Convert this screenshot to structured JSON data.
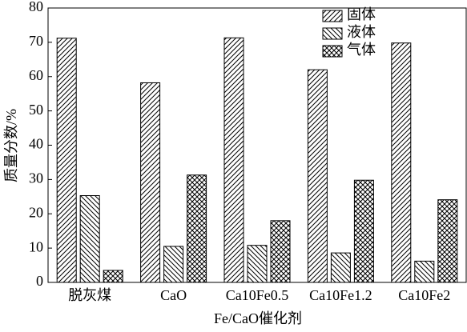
{
  "chart_data": {
    "type": "bar",
    "x_label": "Fe/CaO催化剂",
    "y_label": "质量分数/%",
    "categories": [
      "脱灰煤",
      "CaO",
      "Ca10Fe0.5",
      "Ca10Fe1.2",
      "Ca10Fe2"
    ],
    "series": [
      {
        "name": "固体",
        "color": "#000000",
        "hatch": "/",
        "values": [
          71.2,
          58.2,
          71.3,
          62.0,
          69.8
        ]
      },
      {
        "name": "液体",
        "color": "#000000",
        "hatch": "\\",
        "values": [
          25.3,
          10.5,
          10.8,
          8.6,
          6.2
        ]
      },
      {
        "name": "气体",
        "color": "#000000",
        "hatch": "x",
        "values": [
          3.5,
          31.3,
          18.0,
          29.8,
          24.1
        ]
      }
    ],
    "ylim": [
      0,
      80
    ],
    "yticks": [
      0,
      10,
      20,
      30,
      40,
      50,
      60,
      70,
      80
    ],
    "legend": "upper right"
  }
}
